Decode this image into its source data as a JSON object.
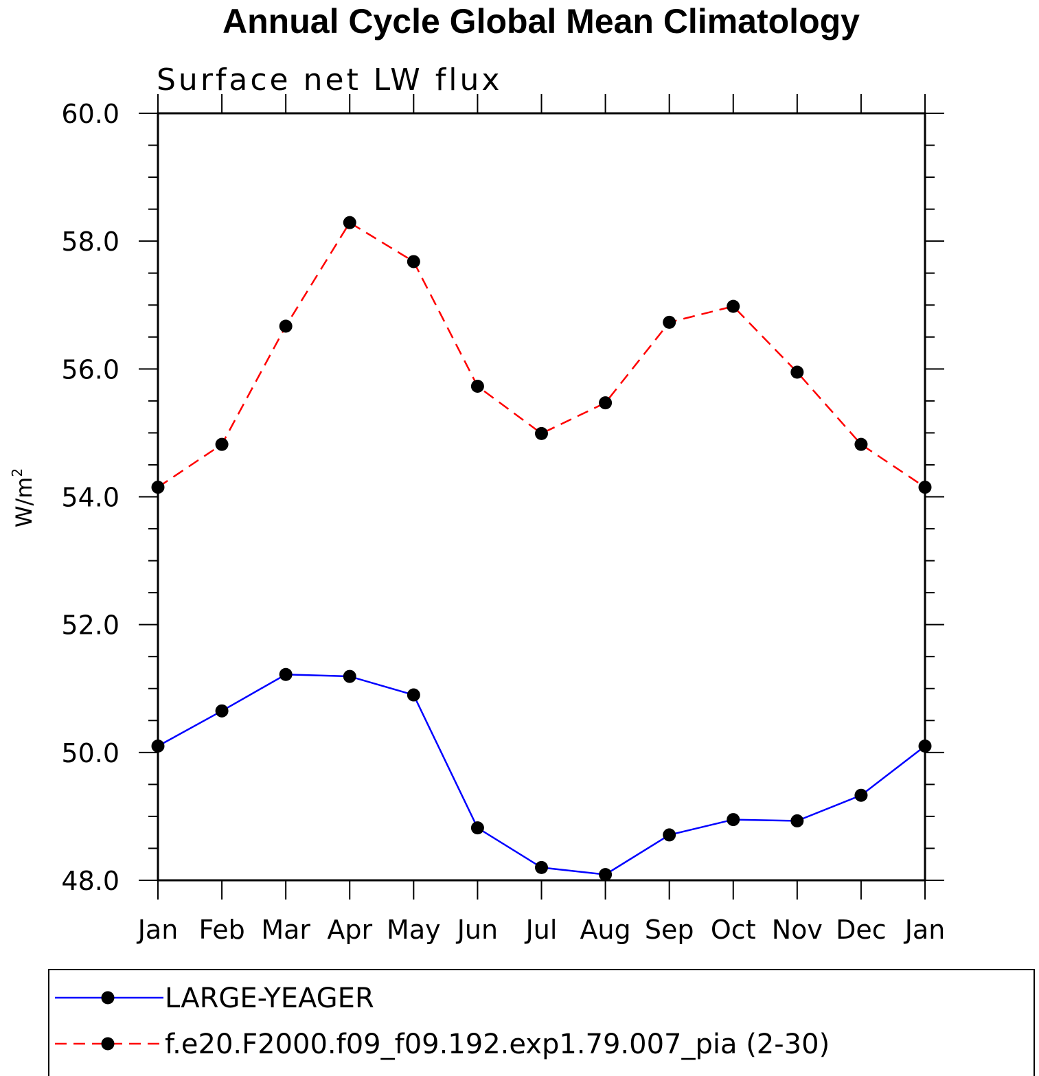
{
  "chart_data": {
    "type": "line",
    "title": "Annual Cycle Global Mean Climatology",
    "subtitle": "Surface net LW flux",
    "ylabel": "W/m",
    "ylabel_superscript": "2",
    "xlabel": "",
    "categories": [
      "Jan",
      "Feb",
      "Mar",
      "Apr",
      "May",
      "Jun",
      "Jul",
      "Aug",
      "Sep",
      "Oct",
      "Nov",
      "Dec",
      "Jan"
    ],
    "ylim": [
      48.0,
      60.0
    ],
    "yticks": [
      "48.0",
      "50.0",
      "52.0",
      "54.0",
      "56.0",
      "58.0",
      "60.0"
    ],
    "grid": false,
    "legend_position": "bottom",
    "series": [
      {
        "name": "LARGE-YEAGER",
        "color": "#0000ff",
        "line_style": "solid",
        "marker": "filled-circle",
        "values": [
          50.1,
          50.65,
          51.22,
          51.19,
          50.9,
          48.82,
          48.2,
          48.09,
          48.71,
          48.95,
          48.93,
          49.33,
          50.1
        ]
      },
      {
        "name": "f.e20.F2000.f09_f09.192.exp1.79.007_pia (2-30)",
        "color": "#ff0000",
        "line_style": "dashed",
        "marker": "filled-circle",
        "values": [
          54.15,
          54.82,
          56.67,
          58.29,
          57.68,
          55.73,
          54.99,
          55.47,
          56.73,
          56.98,
          55.95,
          54.82,
          54.15
        ]
      }
    ]
  }
}
